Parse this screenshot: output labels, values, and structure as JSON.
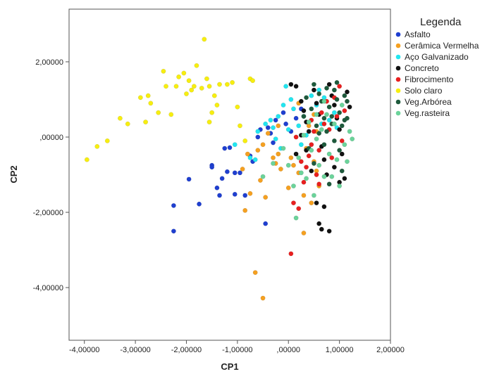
{
  "chart_data": {
    "type": "scatter",
    "xlabel": "CP1",
    "ylabel": "CP2",
    "xlim": [
      -4.3,
      2.0
    ],
    "ylim": [
      -5.4,
      3.4
    ],
    "xticks": [
      -4,
      -3,
      -2,
      -1,
      0,
      1,
      2
    ],
    "xtick_labels": [
      "-4,00000",
      "-3,00000",
      "-2,00000",
      "-1,00000",
      ",00000",
      "1,00000",
      "2,00000"
    ],
    "yticks": [
      2,
      0,
      -2,
      -4
    ],
    "ytick_labels": [
      "2,00000",
      ",00000",
      "-2,00000",
      "-4,00000"
    ],
    "grid": false,
    "legend_title": "Legenda",
    "legend_position": "right",
    "series": [
      {
        "name": "Asfalto",
        "color": "#1f3fd0",
        "points": [
          [
            -2.25,
            -1.82
          ],
          [
            -2.25,
            -2.5
          ],
          [
            -1.95,
            -1.12
          ],
          [
            -1.75,
            -1.78
          ],
          [
            -1.5,
            -0.75
          ],
          [
            -1.5,
            -0.8
          ],
          [
            -1.4,
            -1.35
          ],
          [
            -1.35,
            -1.55
          ],
          [
            -1.3,
            -1.1
          ],
          [
            -1.2,
            -0.92
          ],
          [
            -1.25,
            -0.3
          ],
          [
            -1.15,
            -0.28
          ],
          [
            -1.05,
            -1.52
          ],
          [
            -1.05,
            -0.95
          ],
          [
            -0.95,
            -0.95
          ],
          [
            -0.85,
            -1.55
          ],
          [
            -0.75,
            -0.5
          ],
          [
            -0.7,
            -0.65
          ],
          [
            -0.6,
            0.0
          ],
          [
            -0.55,
            0.2
          ],
          [
            -0.45,
            -2.3
          ],
          [
            -0.4,
            0.25
          ],
          [
            -0.35,
            0.1
          ],
          [
            -0.3,
            -0.15
          ],
          [
            -0.25,
            0.45
          ],
          [
            -0.1,
            0.65
          ],
          [
            -0.05,
            0.35
          ],
          [
            0.05,
            0.15
          ],
          [
            0.15,
            0.5
          ],
          [
            0.25,
            0.75
          ]
        ]
      },
      {
        "name": "Cerâmica Vermelha",
        "color": "#f5a020",
        "points": [
          [
            -0.65,
            -3.6
          ],
          [
            -0.5,
            -4.28
          ],
          [
            -0.45,
            -1.6
          ],
          [
            -0.3,
            -0.55
          ],
          [
            -0.2,
            -0.45
          ],
          [
            -0.15,
            -0.85
          ],
          [
            0.0,
            -1.35
          ],
          [
            0.05,
            -0.55
          ],
          [
            0.1,
            -0.75
          ],
          [
            0.2,
            -0.95
          ],
          [
            0.3,
            -1.55
          ],
          [
            0.3,
            -2.55
          ],
          [
            0.35,
            -0.3
          ],
          [
            0.45,
            -1.75
          ],
          [
            0.5,
            -0.65
          ],
          [
            0.55,
            -0.9
          ],
          [
            0.6,
            -1.3
          ],
          [
            -0.75,
            -1.5
          ],
          [
            -0.85,
            -1.95
          ],
          [
            -0.8,
            -0.45
          ],
          [
            -0.6,
            -0.35
          ],
          [
            -0.5,
            -0.2
          ],
          [
            -0.4,
            0.1
          ],
          [
            -0.2,
            0.3
          ],
          [
            0.2,
            0.9
          ],
          [
            0.5,
            0.6
          ],
          [
            0.55,
            0.15
          ],
          [
            0.4,
            0.3
          ],
          [
            -0.9,
            -0.85
          ],
          [
            -0.55,
            -1.15
          ],
          [
            -0.25,
            -0.7
          ]
        ]
      },
      {
        "name": "Aço Galvanizado",
        "color": "#22e6f0",
        "points": [
          [
            -1.05,
            -0.2
          ],
          [
            -0.75,
            -0.55
          ],
          [
            -0.65,
            -0.6
          ],
          [
            -0.6,
            0.15
          ],
          [
            -0.45,
            0.35
          ],
          [
            -0.35,
            0.45
          ],
          [
            -0.3,
            0.25
          ],
          [
            -0.25,
            -0.05
          ],
          [
            -0.2,
            0.55
          ],
          [
            -0.1,
            0.85
          ],
          [
            -0.05,
            1.35
          ],
          [
            0.05,
            1.0
          ],
          [
            0.1,
            0.75
          ],
          [
            0.2,
            0.3
          ],
          [
            0.3,
            0.55
          ],
          [
            0.45,
            1.1
          ],
          [
            0.55,
            0.85
          ],
          [
            0.6,
            1.25
          ],
          [
            0.7,
            1.05
          ],
          [
            0.8,
            0.45
          ],
          [
            0.9,
            0.65
          ],
          [
            0.95,
            0.25
          ],
          [
            0.25,
            -0.2
          ],
          [
            -0.15,
            -0.3
          ],
          [
            0.0,
            0.2
          ],
          [
            0.35,
            0.05
          ],
          [
            0.65,
            0.35
          ]
        ]
      },
      {
        "name": "Concreto",
        "color": "#111111",
        "points": [
          [
            0.05,
            1.4
          ],
          [
            0.15,
            1.35
          ],
          [
            0.25,
            0.95
          ],
          [
            0.3,
            0.7
          ],
          [
            0.35,
            0.4
          ],
          [
            0.4,
            0.15
          ],
          [
            0.5,
            1.25
          ],
          [
            0.55,
            0.9
          ],
          [
            0.6,
            0.6
          ],
          [
            0.65,
            -0.25
          ],
          [
            0.7,
            -0.6
          ],
          [
            0.75,
            -1.0
          ],
          [
            0.8,
            1.4
          ],
          [
            0.85,
            1.1
          ],
          [
            0.9,
            0.85
          ],
          [
            0.95,
            0.5
          ],
          [
            1.0,
            0.2
          ],
          [
            1.05,
            -0.45
          ],
          [
            1.1,
            -1.1
          ],
          [
            1.15,
            1.2
          ],
          [
            1.2,
            0.8
          ],
          [
            0.55,
            -1.75
          ],
          [
            0.6,
            -2.3
          ],
          [
            0.65,
            -2.45
          ],
          [
            0.8,
            -2.5
          ],
          [
            0.7,
            -1.85
          ],
          [
            0.9,
            -0.8
          ],
          [
            1.0,
            -1.2
          ],
          [
            0.45,
            -0.9
          ],
          [
            0.25,
            0.05
          ],
          [
            0.15,
            -0.45
          ],
          [
            0.35,
            -0.35
          ]
        ]
      },
      {
        "name": "Fibrocimento",
        "color": "#e81f1f",
        "points": [
          [
            0.05,
            -3.1
          ],
          [
            0.1,
            -1.75
          ],
          [
            0.2,
            -1.9
          ],
          [
            0.3,
            -1.2
          ],
          [
            0.35,
            -0.8
          ],
          [
            0.4,
            -0.5
          ],
          [
            0.45,
            -0.2
          ],
          [
            0.5,
            0.15
          ],
          [
            0.55,
            -1.0
          ],
          [
            0.6,
            -0.35
          ],
          [
            0.65,
            0.65
          ],
          [
            0.7,
            0.35
          ],
          [
            0.75,
            0.95
          ],
          [
            0.8,
            0.2
          ],
          [
            0.85,
            -0.55
          ],
          [
            0.9,
            1.05
          ],
          [
            0.95,
            0.55
          ],
          [
            1.0,
            1.35
          ],
          [
            1.05,
            -0.1
          ],
          [
            1.1,
            0.7
          ],
          [
            0.15,
            0.0
          ],
          [
            0.25,
            -0.65
          ],
          [
            0.45,
            0.45
          ],
          [
            0.6,
            -1.25
          ]
        ]
      },
      {
        "name": "Solo claro",
        "color": "#f7ee10",
        "points": [
          [
            -3.95,
            -0.6
          ],
          [
            -3.75,
            -0.25
          ],
          [
            -3.55,
            -0.1
          ],
          [
            -3.3,
            0.5
          ],
          [
            -3.15,
            0.35
          ],
          [
            -2.9,
            1.05
          ],
          [
            -2.8,
            0.4
          ],
          [
            -2.75,
            1.1
          ],
          [
            -2.7,
            0.9
          ],
          [
            -2.55,
            0.65
          ],
          [
            -2.45,
            1.75
          ],
          [
            -2.4,
            1.35
          ],
          [
            -2.2,
            1.35
          ],
          [
            -2.15,
            1.6
          ],
          [
            -2.05,
            1.7
          ],
          [
            -2.0,
            1.15
          ],
          [
            -1.95,
            1.5
          ],
          [
            -1.9,
            1.25
          ],
          [
            -1.8,
            1.9
          ],
          [
            -1.7,
            1.3
          ],
          [
            -1.65,
            2.6
          ],
          [
            -1.6,
            1.55
          ],
          [
            -1.55,
            1.35
          ],
          [
            -1.5,
            0.65
          ],
          [
            -1.45,
            1.1
          ],
          [
            -1.4,
            0.85
          ],
          [
            -1.35,
            1.4
          ],
          [
            -1.2,
            1.4
          ],
          [
            -1.1,
            1.45
          ],
          [
            -1.0,
            0.8
          ],
          [
            -0.95,
            0.3
          ],
          [
            -0.75,
            1.55
          ],
          [
            -0.7,
            1.5
          ],
          [
            -0.85,
            -0.1
          ],
          [
            -2.3,
            0.6
          ],
          [
            -1.55,
            0.4
          ],
          [
            -1.85,
            1.35
          ]
        ]
      },
      {
        "name": "Veg.Arbórea",
        "color": "#1e5a3c",
        "points": [
          [
            0.35,
            1.05
          ],
          [
            0.45,
            0.75
          ],
          [
            0.5,
            1.4
          ],
          [
            0.55,
            0.3
          ],
          [
            0.6,
            1.15
          ],
          [
            0.65,
            0.95
          ],
          [
            0.7,
            0.5
          ],
          [
            0.75,
            1.3
          ],
          [
            0.8,
            0.8
          ],
          [
            0.85,
            0.35
          ],
          [
            0.9,
            1.25
          ],
          [
            0.95,
            1.0
          ],
          [
            1.0,
            0.65
          ],
          [
            1.05,
            0.3
          ],
          [
            1.1,
            1.1
          ],
          [
            1.15,
            0.95
          ],
          [
            0.4,
            -0.3
          ],
          [
            0.5,
            -0.7
          ],
          [
            0.7,
            -0.2
          ],
          [
            0.8,
            -1.25
          ],
          [
            0.9,
            -0.1
          ],
          [
            1.0,
            -0.35
          ],
          [
            1.05,
            -0.9
          ],
          [
            1.1,
            0.45
          ],
          [
            0.6,
            0.1
          ],
          [
            0.3,
            0.55
          ],
          [
            0.85,
            0.55
          ],
          [
            1.15,
            0.5
          ],
          [
            0.95,
            1.45
          ],
          [
            0.75,
            0.15
          ]
        ]
      },
      {
        "name": "Veg.rasteira",
        "color": "#6bd39a",
        "points": [
          [
            -0.5,
            -1.05
          ],
          [
            -0.3,
            -0.7
          ],
          [
            -0.1,
            -0.3
          ],
          [
            0.0,
            -0.75
          ],
          [
            0.1,
            -1.3
          ],
          [
            0.15,
            -2.15
          ],
          [
            0.2,
            -0.55
          ],
          [
            0.3,
            0.05
          ],
          [
            0.35,
            -1.1
          ],
          [
            0.45,
            -0.35
          ],
          [
            0.5,
            -1.55
          ],
          [
            0.55,
            0.6
          ],
          [
            0.6,
            -0.75
          ],
          [
            0.65,
            0.2
          ],
          [
            0.7,
            -1.05
          ],
          [
            0.75,
            0.6
          ],
          [
            0.8,
            -0.45
          ],
          [
            0.85,
            -1.05
          ],
          [
            0.9,
            0.35
          ],
          [
            0.95,
            -0.6
          ],
          [
            1.0,
            -1.3
          ],
          [
            1.05,
            0.85
          ],
          [
            1.1,
            -0.2
          ],
          [
            1.15,
            -0.65
          ],
          [
            1.25,
            -0.05
          ],
          [
            1.2,
            0.15
          ],
          [
            0.4,
            0.4
          ],
          [
            0.25,
            -0.95
          ],
          [
            0.55,
            -0.05
          ],
          [
            0.7,
            0.95
          ]
        ]
      }
    ]
  }
}
